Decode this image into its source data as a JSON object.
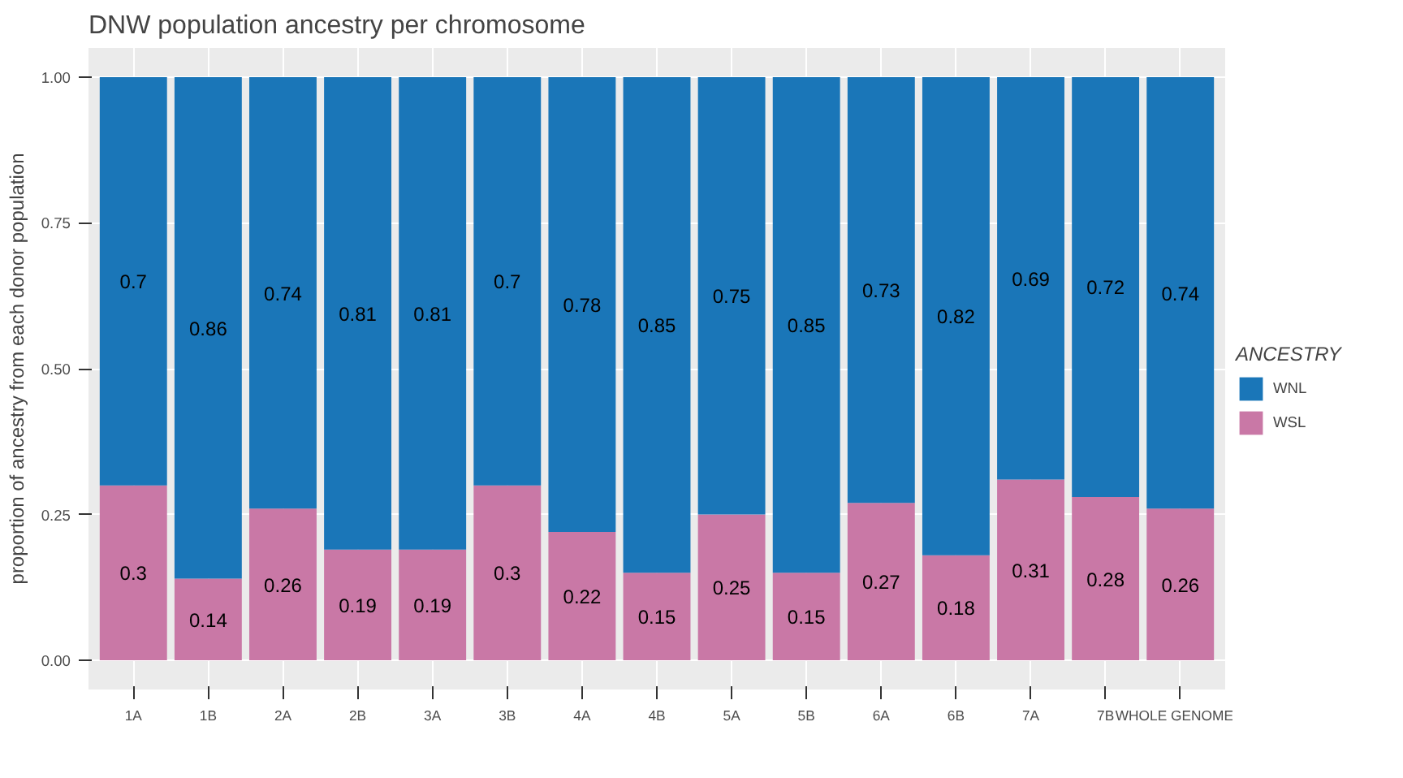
{
  "chart_data": {
    "type": "bar",
    "title": "DNW population ancestry per chromosome",
    "ylabel": "proportion of ancestry from each donor population",
    "legend_title": "ANCESTRY",
    "categories": [
      "1A",
      "1B",
      "2A",
      "2B",
      "3A",
      "3B",
      "4A",
      "4B",
      "5A",
      "5B",
      "6A",
      "6B",
      "7A",
      "7B",
      "WHOLE GENOME"
    ],
    "stacked": true,
    "data_labels": true,
    "grid": true,
    "legend": "right",
    "ylim": [
      -0.05,
      1.05
    ],
    "yticks": [
      {
        "value": 0,
        "label": "0.00"
      },
      {
        "value": 0.25,
        "label": "0.25"
      },
      {
        "value": 0.5,
        "label": "0.50"
      },
      {
        "value": 0.75,
        "label": "0.75"
      },
      {
        "value": 1,
        "label": "1.00"
      }
    ],
    "series": [
      {
        "name": "WSL",
        "color": "#c978a6",
        "values": [
          0.3,
          0.14,
          0.26,
          0.19,
          0.19,
          0.3,
          0.22,
          0.15,
          0.25,
          0.15,
          0.27,
          0.18,
          0.31,
          0.28,
          0.26
        ]
      },
      {
        "name": "WNL",
        "color": "#1a76b8",
        "values": [
          0.7,
          0.86,
          0.74,
          0.81,
          0.81,
          0.7,
          0.78,
          0.85,
          0.75,
          0.85,
          0.73,
          0.82,
          0.69,
          0.72,
          0.74
        ]
      }
    ]
  }
}
